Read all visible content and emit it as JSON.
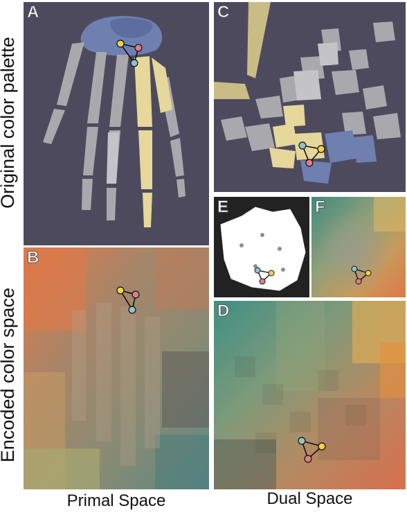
{
  "row_labels": {
    "top": "Original color palette",
    "bottom": "Encoded color space"
  },
  "column_labels": {
    "left": "Primal Space",
    "right": "Dual Space"
  },
  "panels": {
    "A": "A",
    "B": "B",
    "C": "C",
    "D": "D",
    "E": "E",
    "F": "F"
  },
  "colors": {
    "background_dark": "#4e4a5e",
    "bone_gray": "#a9a9ad",
    "bone_yellow": "#e6d79a",
    "bone_blue": "#6e7fb0",
    "node_yellow": "#f1d24a",
    "node_pink": "#e07c8a",
    "node_teal": "#8fc3c6",
    "orange": "#e07a48",
    "teal": "#4f8f86"
  }
}
